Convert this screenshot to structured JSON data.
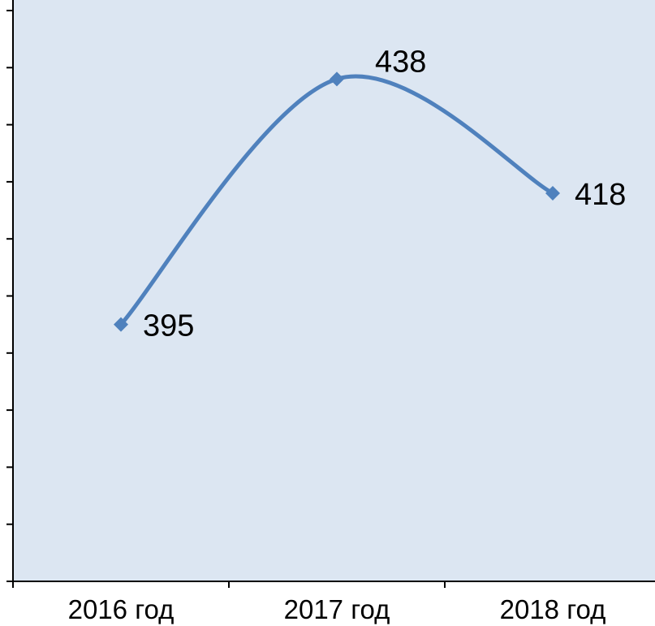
{
  "chart_data": {
    "type": "line",
    "categories": [
      "2016 год",
      "2017 год",
      "2018 год"
    ],
    "series": [
      {
        "values": [
          395,
          438,
          418
        ],
        "smooth": true,
        "marker": "diamond"
      }
    ],
    "data_labels": [
      "395",
      "438",
      "418"
    ],
    "ylim": [
      350,
      450
    ],
    "y_ticks": [
      350,
      360,
      370,
      380,
      390,
      400,
      410,
      420,
      430,
      440,
      450
    ],
    "y_tick_labels_visible": false,
    "grid": false,
    "title": "",
    "xlabel": "",
    "ylabel": ""
  },
  "colors": {
    "plot_background": "#dce6f2",
    "series": "#4f81bd",
    "axis": "#000000"
  }
}
